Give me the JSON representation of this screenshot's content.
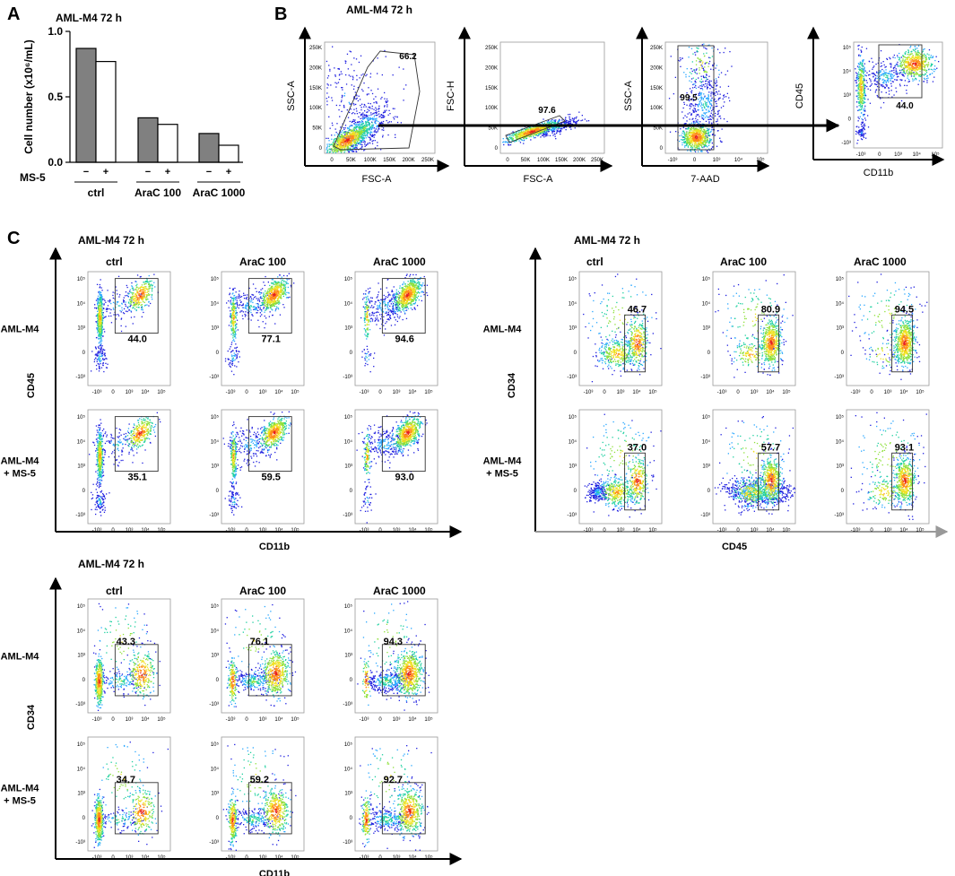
{
  "panel_letters": {
    "a": "A",
    "b": "B",
    "c": "C"
  },
  "titles": {
    "a": "AML-M4 72 h",
    "b": "AML-M4 72 h",
    "c1": "AML-M4 72 h",
    "c2": "AML-M4 72 h",
    "c3": "AML-M4 72 h"
  },
  "chart_data": [
    {
      "type": "bar",
      "title": "AML-M4 72 h",
      "ylabel": "Cell number (x10⁶/mL)",
      "ylim": [
        0,
        1.0
      ],
      "yticks": [
        "0.0",
        "0.5",
        "1.0"
      ],
      "ms5_label": "MS-5",
      "ms5_signs": [
        "−",
        "+"
      ],
      "categories": [
        "ctrl",
        "AraC 100",
        "AraC 1000"
      ],
      "series": [
        {
          "name": "MS-5 −",
          "color": "#808080",
          "values": [
            0.87,
            0.34,
            0.22
          ]
        },
        {
          "name": "MS-5 +",
          "color": "#ffffff",
          "values": [
            0.77,
            0.29,
            0.13
          ]
        }
      ]
    }
  ],
  "gating": {
    "plots": [
      {
        "ylabel": "SSC-A",
        "xlabel": "FSC-A",
        "value": "66.2",
        "yticks": [
          "250K",
          "200K",
          "150K",
          "100K",
          "50K",
          "0"
        ],
        "xticks": [
          "0",
          "50K",
          "100K",
          "150K",
          "200K",
          "250K"
        ]
      },
      {
        "ylabel": "FSC-H",
        "xlabel": "FSC-A",
        "value": "97.6",
        "yticks": [
          "250K",
          "200K",
          "150K",
          "100K",
          "50K",
          "0"
        ],
        "xticks": [
          "0",
          "50K",
          "100K",
          "150K",
          "200K",
          "250K"
        ]
      },
      {
        "ylabel": "SSC-A",
        "xlabel": "7-AAD",
        "value": "99.5",
        "yticks": [
          "250K",
          "200K",
          "150K",
          "100K",
          "50K",
          "0"
        ],
        "xticks": [
          "-10³",
          "0",
          "10³",
          "10⁴",
          "10⁵"
        ]
      },
      {
        "ylabel": "CD45",
        "xlabel": "CD11b",
        "value": "44.0",
        "yticks": [
          "10⁵",
          "10⁴",
          "10³",
          "0",
          "-10³"
        ],
        "xticks": [
          "-10³",
          "0",
          "10³",
          "10⁴",
          "10⁵"
        ]
      }
    ]
  },
  "grids": {
    "log_ticks": [
      "10⁵",
      "10⁴",
      "10³",
      "0",
      "-10³"
    ],
    "log_xticks": [
      "-10³",
      "0",
      "10³",
      "10⁴",
      "10⁵"
    ],
    "col_headers": [
      "ctrl",
      "AraC 100",
      "AraC 1000"
    ],
    "row_label_1": "AML-M4",
    "row_label_2": [
      "AML-M4",
      "+ MS-5"
    ],
    "cd45_cd11b": {
      "ylabel": "CD45",
      "xlabel": "CD11b",
      "values": [
        [
          "44.0",
          "77.1",
          "94.6"
        ],
        [
          "35.1",
          "59.5",
          "93.0"
        ]
      ]
    },
    "cd34_cd45": {
      "ylabel": "CD34",
      "xlabel": "CD45",
      "values": [
        [
          "46.7",
          "80.9",
          "94.5"
        ],
        [
          "37.0",
          "57.7",
          "93.1"
        ]
      ]
    },
    "cd34_cd11b": {
      "ylabel": "CD34",
      "xlabel": "CD11b",
      "values": [
        [
          "43.3",
          "76.1",
          "94.3"
        ],
        [
          "34.7",
          "59.2",
          "92.7"
        ]
      ]
    }
  }
}
